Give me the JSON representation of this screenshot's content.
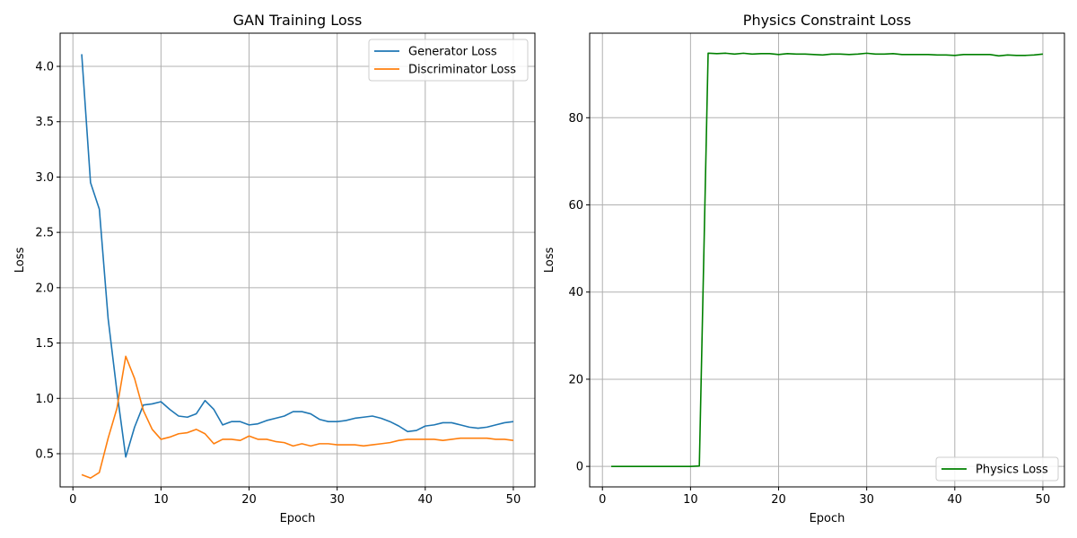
{
  "chart_data": [
    {
      "type": "line",
      "title": "GAN Training Loss",
      "xlabel": "Epoch",
      "ylabel": "Loss",
      "xlim": [
        -1.45,
        52.45
      ],
      "ylim": [
        0.2,
        4.3
      ],
      "xticks": [
        0,
        10,
        20,
        30,
        40,
        50
      ],
      "yticks": [
        0.5,
        1.0,
        1.5,
        2.0,
        2.5,
        3.0,
        3.5,
        4.0
      ],
      "ytick_labels": [
        "0.5",
        "1.0",
        "1.5",
        "2.0",
        "2.5",
        "3.0",
        "3.5",
        "4.0"
      ],
      "grid": true,
      "legend": "top-right",
      "x": [
        1,
        2,
        3,
        4,
        5,
        6,
        7,
        8,
        9,
        10,
        11,
        12,
        13,
        14,
        15,
        16,
        17,
        18,
        19,
        20,
        21,
        22,
        23,
        24,
        25,
        26,
        27,
        28,
        29,
        30,
        31,
        32,
        33,
        34,
        35,
        36,
        37,
        38,
        39,
        40,
        41,
        42,
        43,
        44,
        45,
        46,
        47,
        48,
        49,
        50
      ],
      "series": [
        {
          "name": "Generator Loss",
          "color": "#1f77b4",
          "values": [
            4.11,
            2.95,
            2.71,
            1.72,
            1.06,
            0.47,
            0.74,
            0.94,
            0.95,
            0.97,
            0.9,
            0.84,
            0.83,
            0.86,
            0.98,
            0.9,
            0.76,
            0.79,
            0.79,
            0.76,
            0.77,
            0.8,
            0.82,
            0.84,
            0.88,
            0.88,
            0.86,
            0.81,
            0.79,
            0.79,
            0.8,
            0.82,
            0.83,
            0.84,
            0.82,
            0.79,
            0.75,
            0.7,
            0.71,
            0.75,
            0.76,
            0.78,
            0.78,
            0.76,
            0.74,
            0.73,
            0.74,
            0.76,
            0.78,
            0.79
          ]
        },
        {
          "name": "Discriminator Loss",
          "color": "#ff7f0e",
          "values": [
            0.31,
            0.28,
            0.33,
            0.64,
            0.91,
            1.38,
            1.18,
            0.89,
            0.72,
            0.63,
            0.65,
            0.68,
            0.69,
            0.72,
            0.68,
            0.59,
            0.63,
            0.63,
            0.62,
            0.66,
            0.63,
            0.63,
            0.61,
            0.6,
            0.57,
            0.59,
            0.57,
            0.59,
            0.59,
            0.58,
            0.58,
            0.58,
            0.57,
            0.58,
            0.59,
            0.6,
            0.62,
            0.63,
            0.63,
            0.63,
            0.63,
            0.62,
            0.63,
            0.64,
            0.64,
            0.64,
            0.64,
            0.63,
            0.63,
            0.62
          ]
        }
      ]
    },
    {
      "type": "line",
      "title": "Physics Constraint Loss",
      "xlabel": "Epoch",
      "ylabel": "Loss",
      "xlim": [
        -1.45,
        52.45
      ],
      "ylim": [
        -4.7,
        99.4
      ],
      "xticks": [
        0,
        10,
        20,
        30,
        40,
        50
      ],
      "yticks": [
        0,
        20,
        40,
        60,
        80
      ],
      "ytick_labels": [
        "0",
        "20",
        "40",
        "60",
        "80"
      ],
      "grid": true,
      "legend": "bottom-right",
      "x": [
        1,
        2,
        3,
        4,
        5,
        6,
        7,
        8,
        9,
        10,
        11,
        12,
        13,
        14,
        15,
        16,
        17,
        18,
        19,
        20,
        21,
        22,
        23,
        24,
        25,
        26,
        27,
        28,
        29,
        30,
        31,
        32,
        33,
        34,
        35,
        36,
        37,
        38,
        39,
        40,
        41,
        42,
        43,
        44,
        45,
        46,
        47,
        48,
        49,
        50
      ],
      "series": [
        {
          "name": "Physics Loss",
          "color": "#008000",
          "values": [
            0,
            0,
            0,
            0,
            0,
            0,
            0,
            0,
            0,
            0,
            0.1,
            94.8,
            94.7,
            94.8,
            94.6,
            94.8,
            94.6,
            94.7,
            94.7,
            94.5,
            94.7,
            94.6,
            94.6,
            94.5,
            94.4,
            94.6,
            94.6,
            94.5,
            94.6,
            94.8,
            94.6,
            94.6,
            94.7,
            94.5,
            94.5,
            94.5,
            94.5,
            94.4,
            94.4,
            94.3,
            94.5,
            94.5,
            94.5,
            94.5,
            94.2,
            94.4,
            94.3,
            94.3,
            94.4,
            94.6
          ]
        }
      ]
    }
  ]
}
